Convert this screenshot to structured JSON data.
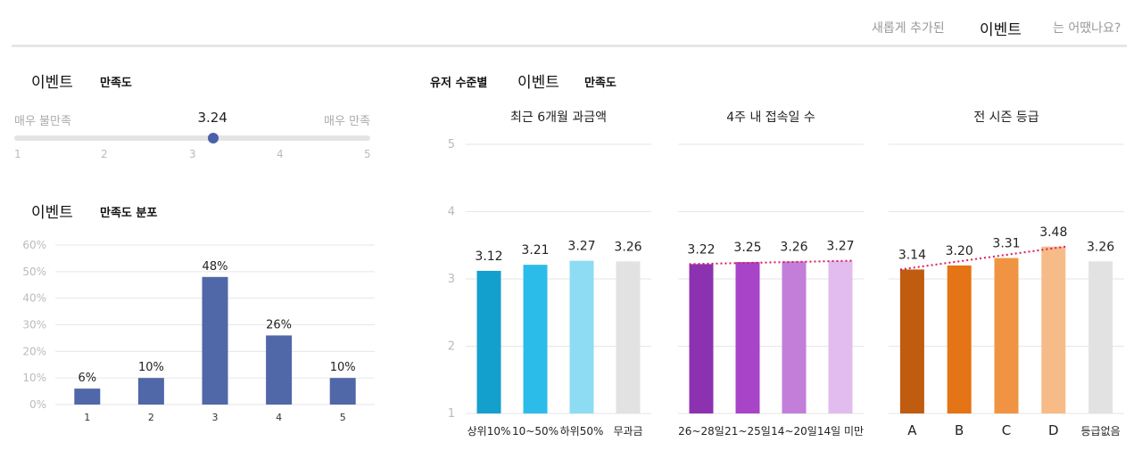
{
  "header": {
    "prefix": "새롭게 추가된",
    "highlight": "이벤트",
    "suffix": "는 어땠나요?"
  },
  "satisfaction": {
    "title_big": "이벤트",
    "title_small": "만족도",
    "low_label": "매우 불만족",
    "high_label": "매우 만족",
    "value": 3.24,
    "value_label": "3.24",
    "ticks": [
      "1",
      "2",
      "3",
      "4",
      "5"
    ],
    "min": 1,
    "max": 5
  },
  "distribution": {
    "title_big": "이벤트",
    "title_small": "만족도 분포"
  },
  "user_level": {
    "title_prefix": "유저 수준별",
    "title_big": "이벤트",
    "title_small": "만족도"
  },
  "colors": {
    "dist_bar": "#5068a8",
    "grid": "#e6e6e6",
    "trend": "#d81b60"
  },
  "chart_data": [
    {
      "type": "bar",
      "title": "이벤트 만족도 분포",
      "categories": [
        "1",
        "2",
        "3",
        "4",
        "5"
      ],
      "values": [
        6,
        10,
        48,
        26,
        10
      ],
      "data_labels": [
        "6%",
        "10%",
        "48%",
        "26%",
        "10%"
      ],
      "ylim": [
        0,
        60
      ],
      "yticks": [
        "0%",
        "10%",
        "20%",
        "30%",
        "40%",
        "50%",
        "60%"
      ],
      "ytick_values": [
        0,
        10,
        20,
        30,
        40,
        50,
        60
      ]
    },
    {
      "type": "bar",
      "title": "최근 6개월 과금액",
      "categories": [
        "상위10%",
        "10~50%",
        "하위50%",
        "무과금"
      ],
      "values": [
        3.12,
        3.21,
        3.27,
        3.26
      ],
      "data_labels": [
        "3.12",
        "3.21",
        "3.27",
        "3.26"
      ],
      "colors": [
        "#14a0cc",
        "#2cbcea",
        "#8edcf4",
        "#e2e2e2"
      ],
      "ylim": [
        1,
        5
      ],
      "yticks": [
        "1",
        "2",
        "3",
        "4",
        "5"
      ],
      "ytick_values": [
        1,
        2,
        3,
        4,
        5
      ],
      "trend": false
    },
    {
      "type": "bar",
      "title": "4주 내 접속일 수",
      "categories": [
        "26~28일",
        "21~25일",
        "14~20일",
        "14일 미만"
      ],
      "values": [
        3.22,
        3.25,
        3.26,
        3.27
      ],
      "data_labels": [
        "3.22",
        "3.25",
        "3.26",
        "3.27"
      ],
      "colors": [
        "#8c32b0",
        "#a844c8",
        "#c27ed8",
        "#e2bcee"
      ],
      "ylim": [
        1,
        5
      ],
      "ytick_values": [
        1,
        2,
        3,
        4,
        5
      ],
      "trend": true,
      "trend_count": 4
    },
    {
      "type": "bar",
      "title": "전 시즌 등급",
      "categories": [
        "A",
        "B",
        "C",
        "D",
        "등급없음"
      ],
      "values": [
        3.14,
        3.2,
        3.31,
        3.48,
        3.26
      ],
      "data_labels": [
        "3.14",
        "3.20",
        "3.31",
        "3.48",
        "3.26"
      ],
      "colors": [
        "#c05c10",
        "#e47416",
        "#f09444",
        "#f7bb88",
        "#e2e2e2"
      ],
      "ylim": [
        1,
        5
      ],
      "ytick_values": [
        1,
        2,
        3,
        4,
        5
      ],
      "trend": true,
      "trend_count": 4
    }
  ]
}
